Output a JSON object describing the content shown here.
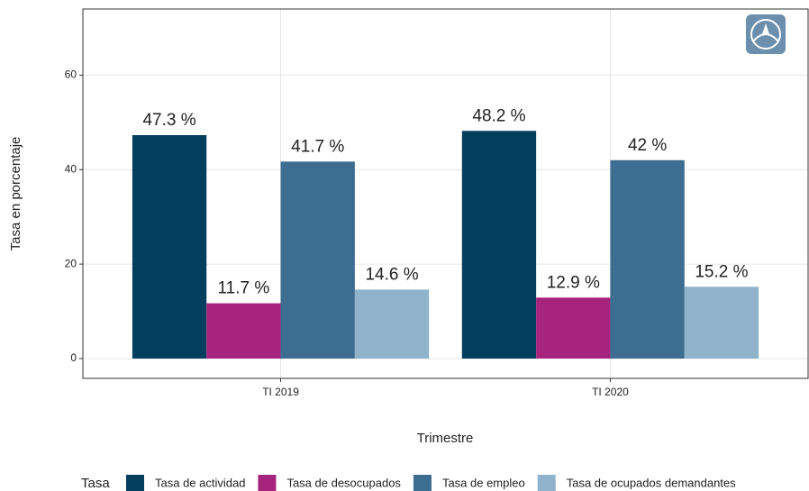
{
  "chart_data": {
    "type": "bar",
    "categories": [
      "TI 2019",
      "TI 2020"
    ],
    "series": [
      {
        "name": "Tasa de actividad",
        "color": "#023e5e",
        "values": [
          47.3,
          48.2
        ],
        "value_labels": [
          "47.3 %",
          "48.2 %"
        ]
      },
      {
        "name": "Tasa de desocupados",
        "color": "#a6247e",
        "values": [
          11.7,
          12.9
        ],
        "value_labels": [
          "11.7 %",
          "12.9 %"
        ]
      },
      {
        "name": "Tasa de empleo",
        "color": "#3d6d91",
        "values": [
          41.7,
          42
        ],
        "value_labels": [
          "41.7 %",
          "42 %"
        ]
      },
      {
        "name": "Tasa de ocupados demandantes",
        "color": "#8eb3ca",
        "values": [
          14.6,
          15.2
        ],
        "value_labels": [
          "14.6 %",
          "15.2 %"
        ]
      }
    ],
    "xlabel": "Trimestre",
    "ylabel": "Tasa en porcentaje",
    "legend_title": "Tasa",
    "ylim": [
      -4.2,
      74
    ],
    "yticks": [
      0,
      20,
      40,
      60
    ],
    "grid": true,
    "legend": "bottom"
  }
}
